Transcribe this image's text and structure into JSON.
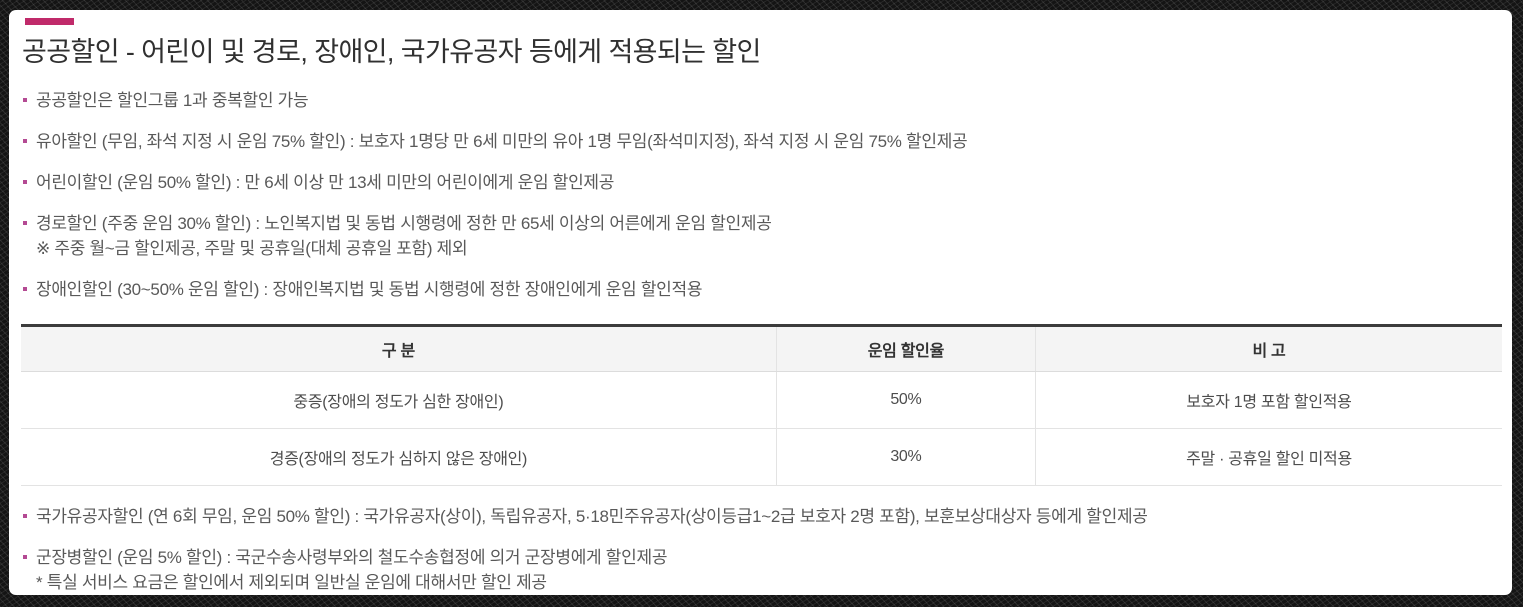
{
  "page": {
    "title": "공공할인 - 어린이 및 경로, 장애인, 국가유공자 등에게 적용되는 할인"
  },
  "colors": {
    "accent": "#c02a6a",
    "bullet": "#b44a93",
    "title_text": "#303030",
    "body_text": "#595959",
    "table_top_border": "#3c3c3c",
    "table_header_bg": "#f4f4f4",
    "table_border": "#e3e3e3",
    "frame": "#141414"
  },
  "bullets_top": [
    {
      "text": "공공할인은 할인그룹 1과 중복할인 가능"
    },
    {
      "text": "유아할인 (무임, 좌석 지정 시 운임 75% 할인) : 보호자 1명당 만 6세 미만의 유아 1명 무임(좌석미지정), 좌석 지정 시 운임 75% 할인제공"
    },
    {
      "text": "어린이할인 (운임 50% 할인) : 만 6세 이상 만 13세 미만의 어린이에게 운임 할인제공"
    },
    {
      "text": "경로할인 (주중 운임 30% 할인) : 노인복지법 및 동법 시행령에 정한 만 65세 이상의 어른에게 운임 할인제공",
      "note": "※ 주중 월~금 할인제공, 주말 및 공휴일(대체 공휴일 포함) 제외"
    },
    {
      "text": "장애인할인 (30~50% 운임 할인) : 장애인복지법 및 동법 시행령에 정한 장애인에게 운임 할인적용"
    }
  ],
  "table": {
    "headers": [
      "구 분",
      "운임 할인율",
      "비 고"
    ],
    "rows": [
      [
        "중증(장애의 정도가 심한 장애인)",
        "50%",
        "보호자 1명 포함 할인적용"
      ],
      [
        "경증(장애의 정도가 심하지 않은 장애인)",
        "30%",
        "주말 · 공휴일 할인 미적용"
      ]
    ]
  },
  "bullets_bottom": [
    {
      "text": "국가유공자할인 (연 6회 무임, 운임 50% 할인) : 국가유공자(상이), 독립유공자, 5·18민주유공자(상이등급1~2급 보호자 2명 포함), 보훈보상대상자 등에게 할인제공"
    },
    {
      "text": "군장병할인 (운임 5% 할인) : 국군수송사령부와의 철도수송협정에 의거 군장병에게 할인제공",
      "note": "* 특실 서비스 요금은 할인에서 제외되며 일반실 운임에 대해서만 할인 제공"
    }
  ]
}
